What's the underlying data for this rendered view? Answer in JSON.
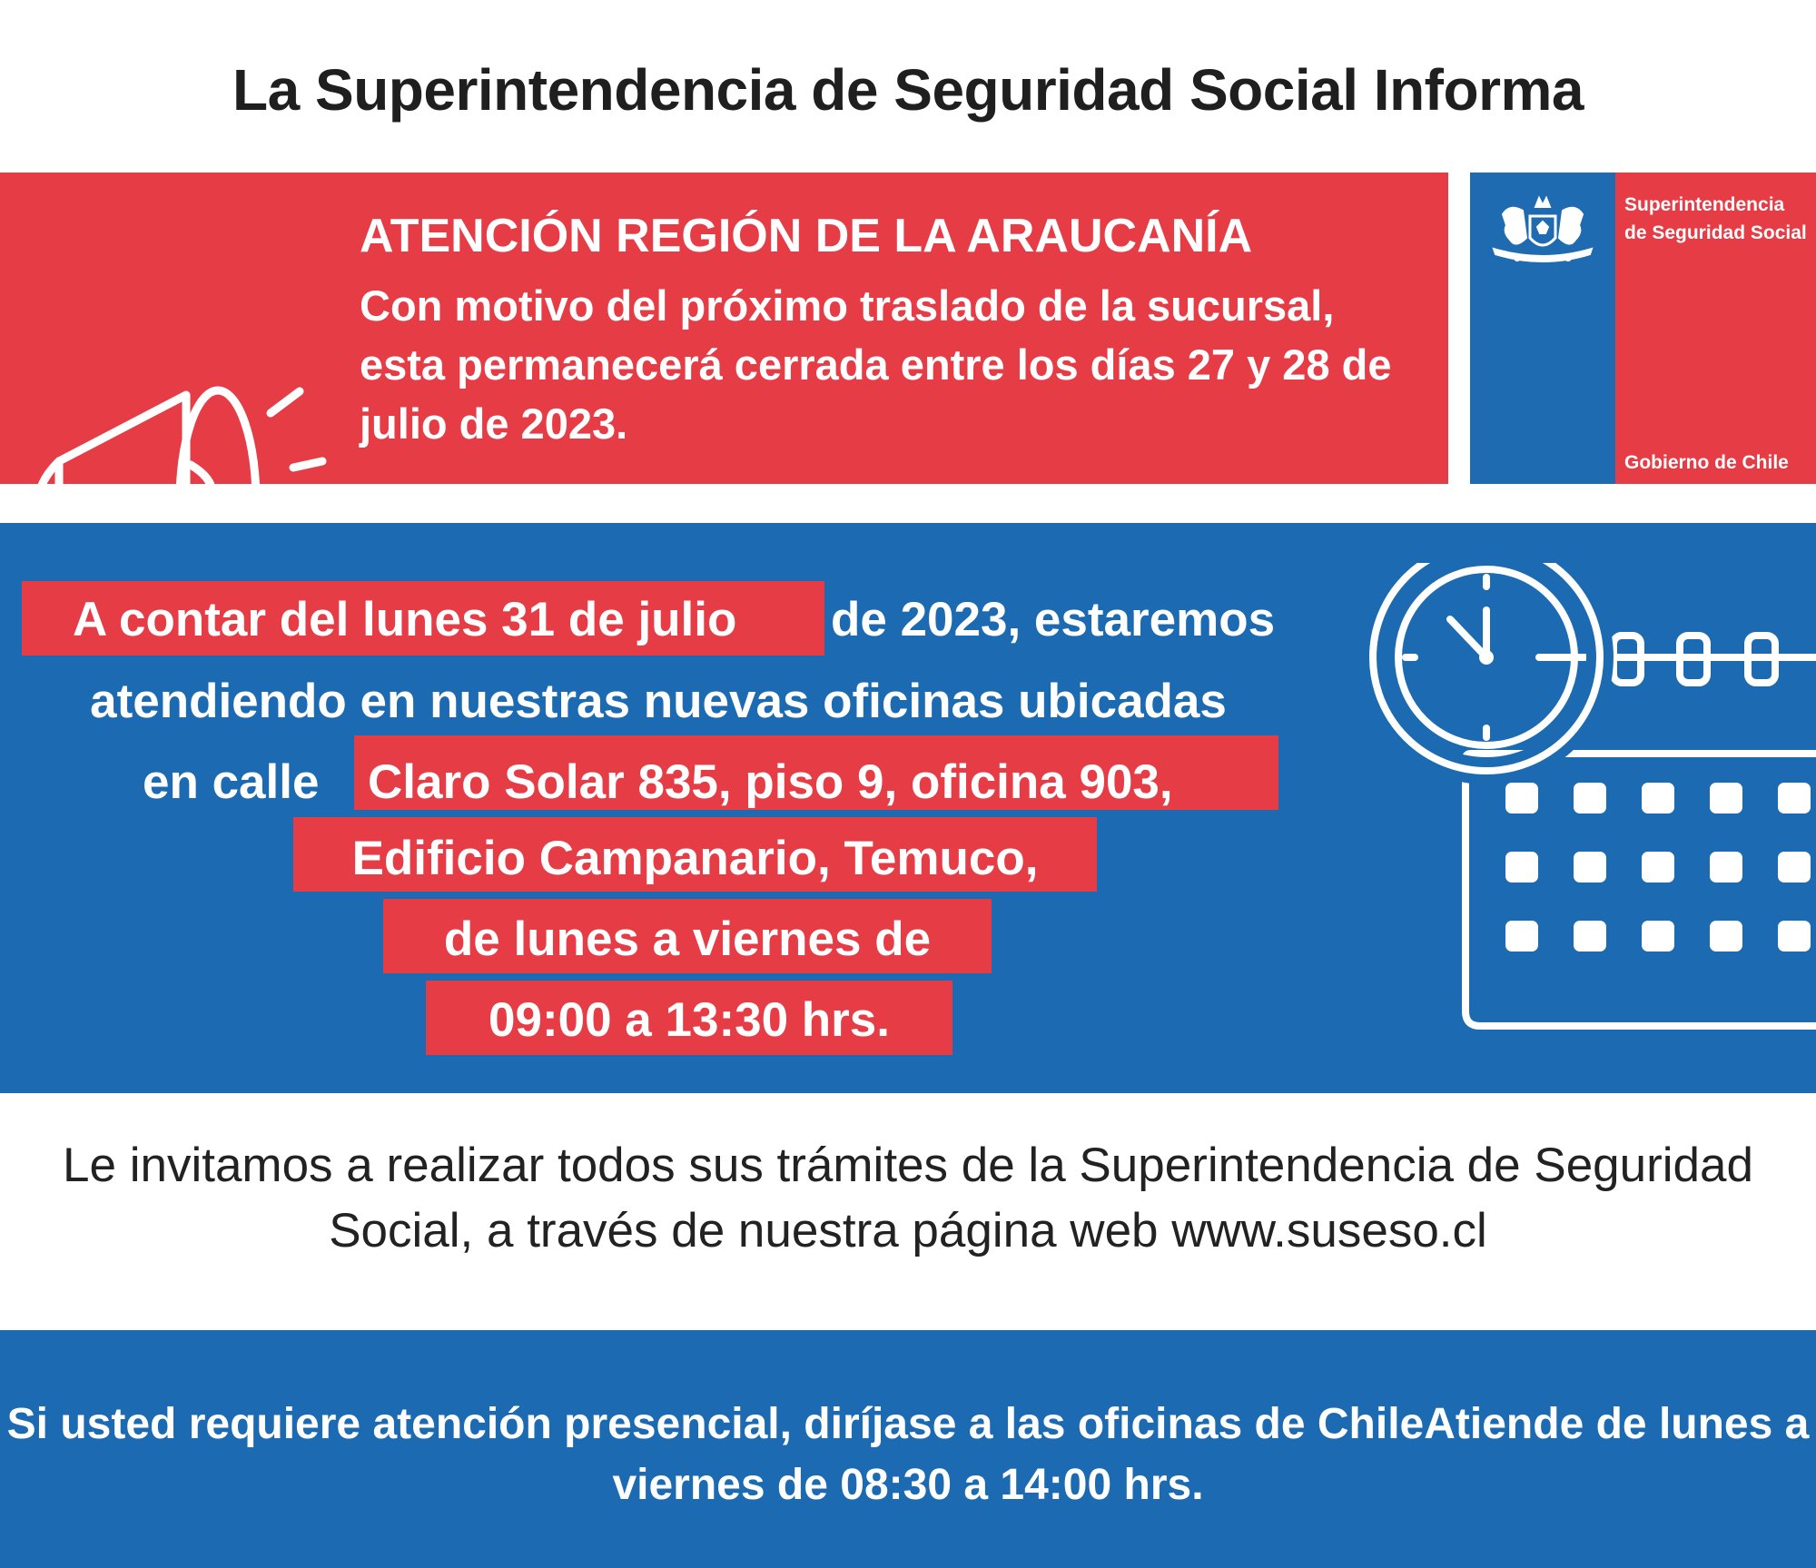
{
  "header": {
    "title": "La Superintendencia de Seguridad Social Informa"
  },
  "alert": {
    "heading": "ATENCIÓN REGIÓN DE LA ARAUCANÍA",
    "body": "Con motivo del próximo traslado de la sucursal, esta permanecerá cerrada entre los días 27 y 28 de julio de 2023."
  },
  "logo": {
    "name": "Superintendencia de Seguridad Social",
    "government": "Gobierno de Chile"
  },
  "notice": {
    "line1_highlight": "A contar del lunes 31 de julio",
    "line1_rest": "de 2023, estaremos",
    "line2": "atendiendo en nuestras nuevas oficinas ubicadas",
    "line3_plain": "en calle",
    "line3_highlight": "Claro Solar 835, piso 9, oficina 903,",
    "line4": "Edificio Campanario, Temuco,",
    "line5": "de lunes a viernes de",
    "line6": "09:00 a 13:30 hrs."
  },
  "invitation": {
    "text": "Le invitamos a realizar todos sus trámites de la Superintendencia de Seguridad Social, a través de nuestra página web www.suseso.cl"
  },
  "footer": {
    "text": "Si usted requiere atención presencial, diríjase a las oficinas de ChileAtiende de lunes a viernes de 08:30 a 14:00 hrs."
  },
  "colors": {
    "red": "#e63c46",
    "blue": "#1c6ab2",
    "logo_blue": "#1f6bb1"
  }
}
